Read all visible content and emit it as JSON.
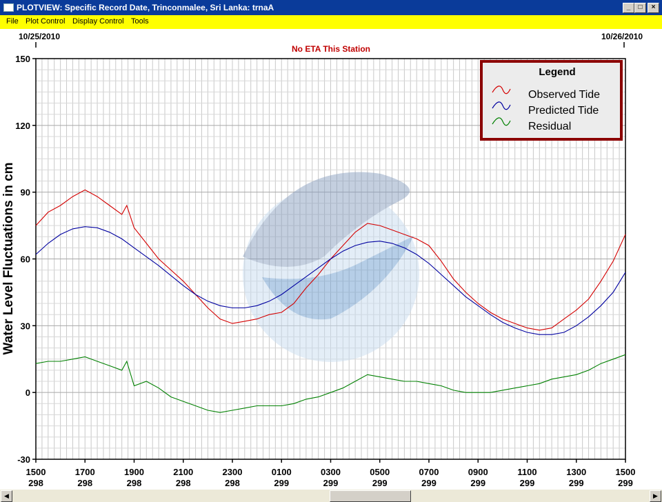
{
  "window": {
    "title": "PLOTVIEW: Specific Record Date, Trinconmalee, Sri Lanka: trnaA",
    "min_icon": "minimize-icon",
    "max_icon": "maximize-icon",
    "close_icon": "close-icon"
  },
  "menu": {
    "items": [
      {
        "label": "File"
      },
      {
        "label": "Plot Control"
      },
      {
        "label": "Display Control"
      },
      {
        "label": "Tools"
      }
    ]
  },
  "colors": {
    "titlebar": "#0a3b9a",
    "menubar": "#ffff00",
    "observed": "#d40000",
    "predicted": "#0000a0",
    "residual": "#008000",
    "legend_border": "#8b0000",
    "eta_text": "#c00000"
  },
  "chart_data": {
    "type": "line",
    "title": "No ETA This Station",
    "ylabel": "Water Level Fluctuations in cm",
    "xlabel": "",
    "date_left": "10/25/2010",
    "date_right": "10/26/2010",
    "ylim": [
      -30,
      150
    ],
    "yticks": [
      150,
      120,
      90,
      60,
      30,
      0,
      -30
    ],
    "xlim": [
      15,
      39
    ],
    "x_ticks": [
      {
        "x": 15,
        "time": "1500",
        "day": "298"
      },
      {
        "x": 17,
        "time": "1700",
        "day": "298"
      },
      {
        "x": 19,
        "time": "1900",
        "day": "298"
      },
      {
        "x": 21,
        "time": "2100",
        "day": "298"
      },
      {
        "x": 23,
        "time": "2300",
        "day": "298"
      },
      {
        "x": 25,
        "time": "0100",
        "day": "299"
      },
      {
        "x": 27,
        "time": "0300",
        "day": "299"
      },
      {
        "x": 29,
        "time": "0500",
        "day": "299"
      },
      {
        "x": 31,
        "time": "0700",
        "day": "299"
      },
      {
        "x": 33,
        "time": "0900",
        "day": "299"
      },
      {
        "x": 35,
        "time": "1100",
        "day": "299"
      },
      {
        "x": 37,
        "time": "1300",
        "day": "299"
      },
      {
        "x": 39,
        "time": "1500",
        "day": "299"
      }
    ],
    "grid": true,
    "legend": {
      "title": "Legend",
      "placement": "top-right",
      "entries": [
        "Observed Tide",
        "Predicted Tide",
        "Residual"
      ]
    },
    "series": [
      {
        "name": "Observed Tide",
        "x": [
          15,
          15.5,
          16,
          16.5,
          17,
          17.5,
          18,
          18.5,
          18.7,
          19,
          19.5,
          20,
          20.5,
          21,
          21.5,
          22,
          22.5,
          23,
          23.5,
          24,
          24.5,
          25,
          25.5,
          26,
          26.5,
          27,
          27.5,
          28,
          28.5,
          29,
          29.5,
          30,
          30.5,
          31,
          31.5,
          32,
          32.5,
          33,
          33.5,
          34,
          34.5,
          35,
          35.5,
          36,
          36.5,
          37,
          37.5,
          38,
          38.5,
          39
        ],
        "y": [
          75,
          81,
          84,
          88,
          91,
          88,
          84,
          80,
          84,
          74,
          67,
          60,
          55,
          50,
          44,
          38,
          33,
          31,
          32,
          33,
          35,
          36,
          40,
          47,
          53,
          60,
          66,
          72,
          76,
          75,
          73,
          71,
          69,
          66,
          59,
          51,
          45,
          40,
          36,
          33,
          31,
          29,
          28,
          29,
          33,
          37,
          42,
          50,
          59,
          71
        ]
      },
      {
        "name": "Predicted Tide",
        "x": [
          15,
          15.5,
          16,
          16.5,
          17,
          17.5,
          18,
          18.5,
          19,
          19.5,
          20,
          20.5,
          21,
          21.5,
          22,
          22.5,
          23,
          23.5,
          24,
          24.5,
          25,
          25.5,
          26,
          26.5,
          27,
          27.5,
          28,
          28.5,
          29,
          29.5,
          30,
          30.5,
          31,
          31.5,
          32,
          32.5,
          33,
          33.5,
          34,
          34.5,
          35,
          35.5,
          36,
          36.5,
          37,
          37.5,
          38,
          38.5,
          39
        ],
        "y": [
          62,
          67,
          71,
          73.5,
          74.5,
          74,
          72,
          69,
          65,
          61,
          57,
          52.5,
          48,
          44,
          41,
          39,
          38,
          38,
          39,
          41,
          44,
          48,
          52,
          56,
          60,
          63.5,
          66,
          67.5,
          68,
          67,
          65,
          62,
          58,
          53,
          48,
          43,
          39,
          35,
          31.5,
          29,
          27,
          26,
          26,
          27,
          30,
          34,
          39,
          45,
          54
        ]
      },
      {
        "name": "Residual",
        "x": [
          15,
          15.5,
          16,
          16.5,
          17,
          17.5,
          18,
          18.5,
          18.7,
          19,
          19.5,
          20,
          20.5,
          21,
          21.5,
          22,
          22.5,
          23,
          23.5,
          24,
          24.5,
          25,
          25.5,
          26,
          26.5,
          27,
          27.5,
          28,
          28.5,
          29,
          29.5,
          30,
          30.5,
          31,
          31.5,
          32,
          32.5,
          33,
          33.5,
          34,
          34.5,
          35,
          35.5,
          36,
          36.5,
          37,
          37.5,
          38,
          38.5,
          39
        ],
        "y": [
          13,
          14,
          14,
          15,
          16,
          14,
          12,
          10,
          14,
          3,
          5,
          2,
          -2,
          -4,
          -6,
          -8,
          -9,
          -8,
          -7,
          -6,
          -6,
          -6,
          -5,
          -3,
          -2,
          0,
          2,
          5,
          8,
          7,
          6,
          5,
          5,
          4,
          3,
          1,
          0,
          0,
          0,
          1,
          2,
          3,
          4,
          6,
          7,
          8,
          10,
          13,
          15,
          17
        ]
      }
    ]
  }
}
